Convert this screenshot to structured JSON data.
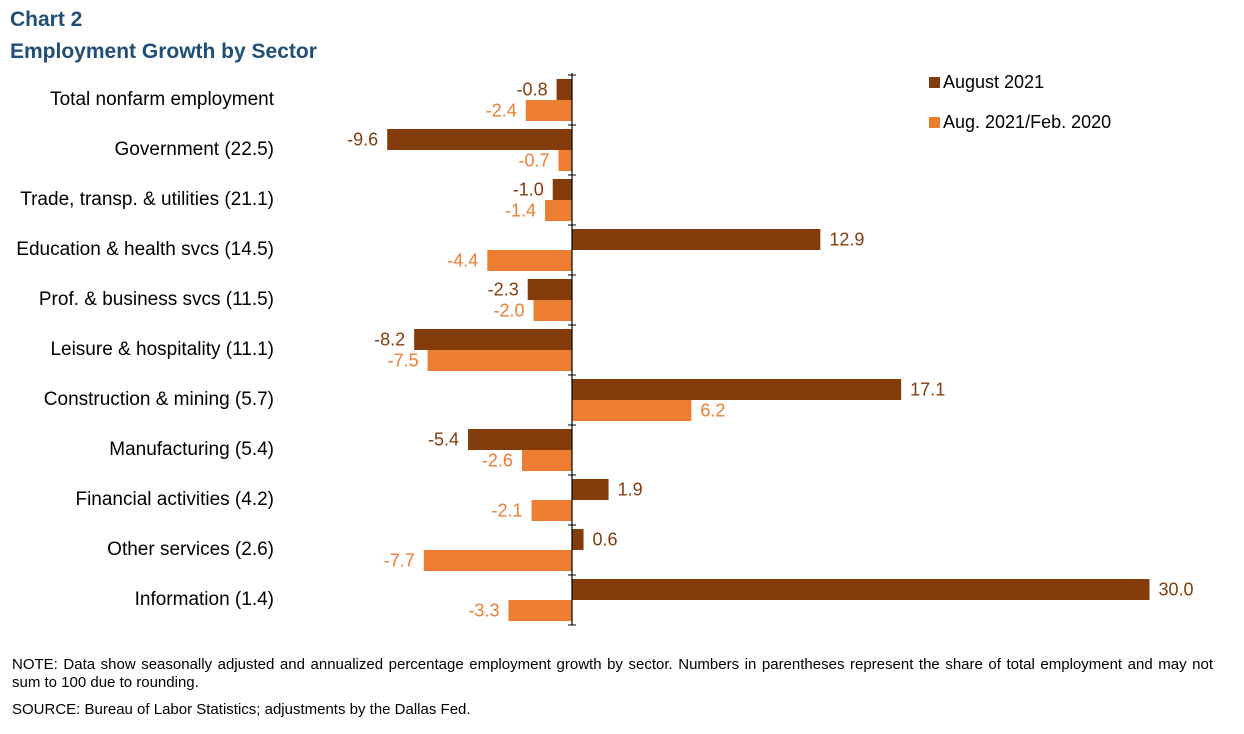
{
  "header": {
    "chart_label": "Chart 2",
    "title": "Employment  Growth by Sector"
  },
  "chart_data": {
    "type": "bar",
    "orientation": "horizontal",
    "title": "Employment  Growth by Sector",
    "categories": [
      "Total nonfarm employment",
      "Government (22.5)",
      "Trade, transp. & utilities (21.1)",
      "Education & health svcs (14.5)",
      "Prof. & business svcs (11.5)",
      "Leisure & hospitality (11.1)",
      "Construction & mining (5.7)",
      "Manufacturing (5.4)",
      "Financial activities (4.2)",
      "Other services (2.6)",
      "Information (1.4)"
    ],
    "series": [
      {
        "name": "August 2021",
        "color": "#843c0c",
        "values": [
          -0.8,
          -9.6,
          -1.0,
          12.9,
          -2.3,
          -8.2,
          17.1,
          -5.4,
          1.9,
          0.6,
          30.0
        ]
      },
      {
        "name": "Aug. 2021/Feb. 2020",
        "color": "#ed7d31",
        "values": [
          -2.4,
          -0.7,
          -1.4,
          -4.4,
          -2.0,
          -7.5,
          6.2,
          -2.6,
          -2.1,
          -7.7,
          -3.3
        ]
      }
    ],
    "legend_position": "top-right",
    "grid": false,
    "data_labels": true,
    "label_decimals": 1
  },
  "footer": {
    "note": "NOTE: Data show seasonally adjusted and annualized percentage employment growth by sector. Numbers in parentheses represent the share of total employment and may not sum to 100 due to rounding.",
    "source": "SOURCE:  Bureau of Labor Statistics; adjustments  by the Dallas Fed."
  }
}
